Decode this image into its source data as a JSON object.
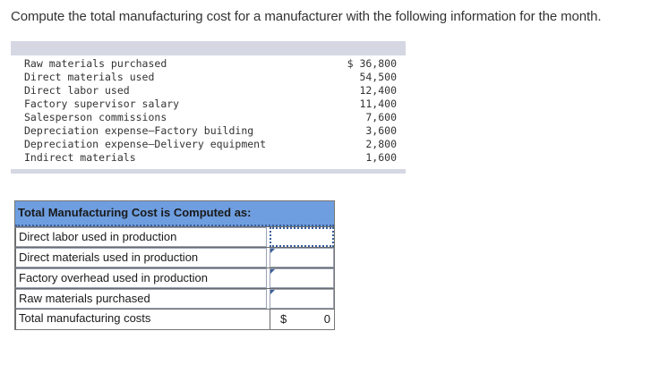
{
  "question": "Compute the total manufacturing cost for a manufacturer with the following information for the month.",
  "given": {
    "items": [
      {
        "label": "Raw materials purchased",
        "value": "$ 36,800"
      },
      {
        "label": "Direct materials used",
        "value": "54,500"
      },
      {
        "label": "Direct labor used",
        "value": "12,400"
      },
      {
        "label": "Factory supervisor salary",
        "value": "11,400"
      },
      {
        "label": "Salesperson commissions",
        "value": "7,600"
      },
      {
        "label": "Depreciation expense—Factory building",
        "value": "3,600"
      },
      {
        "label": "Depreciation expense—Delivery equipment",
        "value": "2,800"
      },
      {
        "label": "Indirect materials",
        "value": "1,600"
      }
    ]
  },
  "answer_table": {
    "header": "Total Manufacturing Cost is Computed as:",
    "rows": [
      {
        "label": "Direct labor used in production",
        "amount": ""
      },
      {
        "label": "Direct materials used in production",
        "amount": ""
      },
      {
        "label": "Factory overhead used in production",
        "amount": ""
      },
      {
        "label": "Raw materials purchased",
        "amount": ""
      }
    ],
    "total": {
      "label": "Total manufacturing costs",
      "currency": "$",
      "value": "0"
    }
  },
  "colors": {
    "header_bg": "#6e9ee0",
    "data_bar": "#d5d8e3",
    "accent": "#3a5f99"
  }
}
